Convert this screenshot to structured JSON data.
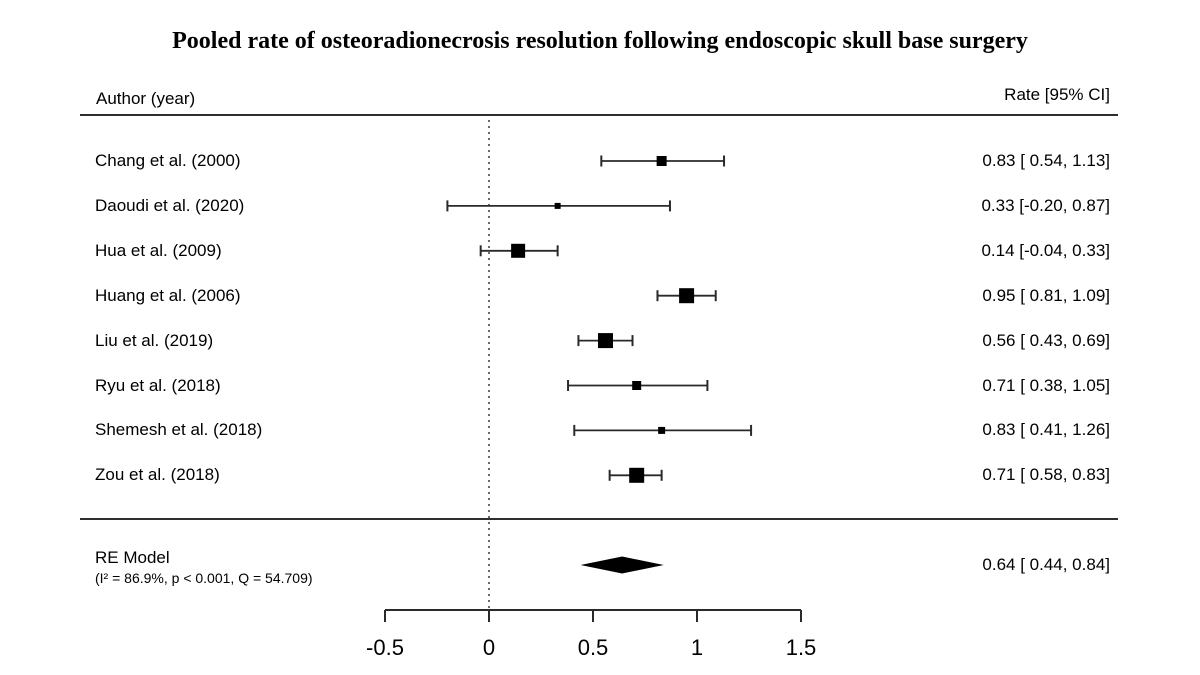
{
  "chart_data": {
    "type": "forest",
    "title": "Pooled rate of osteoradionecrosis resolution following endoscopic skull base surgery",
    "columns": {
      "left": "Author (year)",
      "right": "Rate [95% CI]"
    },
    "xlim": [
      -0.5,
      1.5
    ],
    "reference_line": 0,
    "ticks": [
      -0.5,
      0,
      0.5,
      1,
      1.5
    ],
    "tick_labels": [
      "-0.5",
      "0",
      "0.5",
      "1",
      "1.5"
    ],
    "grid": false,
    "studies": [
      {
        "label": "Chang et al. (2000)",
        "rate": 0.83,
        "ci_low": 0.54,
        "ci_high": 1.13,
        "display": "0.83 [ 0.54, 1.13]",
        "marker_size": 10
      },
      {
        "label": "Daoudi et al. (2020)",
        "rate": 0.33,
        "ci_low": -0.2,
        "ci_high": 0.87,
        "display": "0.33 [-0.20, 0.87]",
        "marker_size": 6
      },
      {
        "label": "Hua et al. (2009)",
        "rate": 0.14,
        "ci_low": -0.04,
        "ci_high": 0.33,
        "display": "0.14 [-0.04, 0.33]",
        "marker_size": 14
      },
      {
        "label": "Huang et al. (2006)",
        "rate": 0.95,
        "ci_low": 0.81,
        "ci_high": 1.09,
        "display": "0.95 [ 0.81, 1.09]",
        "marker_size": 15
      },
      {
        "label": "Liu et al. (2019)",
        "rate": 0.56,
        "ci_low": 0.43,
        "ci_high": 0.69,
        "display": "0.56 [ 0.43, 0.69]",
        "marker_size": 15
      },
      {
        "label": "Ryu et al. (2018)",
        "rate": 0.71,
        "ci_low": 0.38,
        "ci_high": 1.05,
        "display": "0.71 [ 0.38, 1.05]",
        "marker_size": 9
      },
      {
        "label": "Shemesh et al. (2018)",
        "rate": 0.83,
        "ci_low": 0.41,
        "ci_high": 1.26,
        "display": "0.83 [ 0.41, 1.26]",
        "marker_size": 7
      },
      {
        "label": "Zou et al. (2018)",
        "rate": 0.71,
        "ci_low": 0.58,
        "ci_high": 0.83,
        "display": "0.71 [ 0.58, 0.83]",
        "marker_size": 15
      }
    ],
    "summary": {
      "label": "RE Model",
      "heterogeneity": "(I² = 86.9%, p < 0.001, Q = 54.709)",
      "rate": 0.64,
      "ci_low": 0.44,
      "ci_high": 0.84,
      "display": "0.64 [ 0.44, 0.84]"
    },
    "colors": {
      "marker": "#000000",
      "line": "#2a2a2a",
      "text": "#000000",
      "background": "#ffffff"
    }
  }
}
